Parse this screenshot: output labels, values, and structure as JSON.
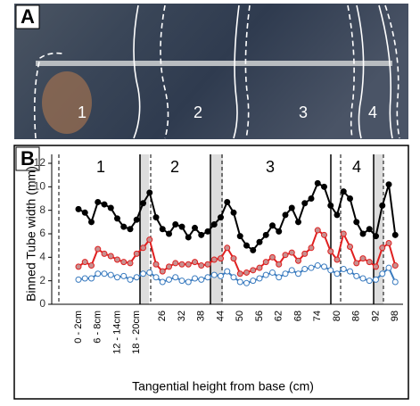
{
  "photo": {
    "label": "A",
    "zones": [
      "1",
      "2",
      "3",
      "4"
    ]
  },
  "chart_data": {
    "type": "line",
    "panel_label": "B",
    "ylabel": "Binned Tube width (mm)",
    "xlabel": "Tangential height from base (cm)",
    "zone_labels": [
      "1",
      "2",
      "3",
      "4"
    ],
    "categories": [
      "0 - 2cm",
      null,
      null,
      "6 - 8cm",
      null,
      null,
      "12 - 14cm",
      null,
      null,
      "18 - 20cm",
      null,
      null,
      null,
      "26",
      null,
      null,
      "32",
      null,
      null,
      "38",
      null,
      null,
      "44",
      null,
      null,
      "50",
      null,
      null,
      "56",
      null,
      null,
      "62",
      null,
      null,
      "68",
      null,
      null,
      "74",
      null,
      null,
      "80",
      null,
      null,
      "86",
      null,
      null,
      "92",
      null,
      null,
      "98"
    ],
    "ylim": [
      0,
      12
    ],
    "yticks": [
      0,
      2,
      4,
      6,
      8,
      10,
      12
    ],
    "series": [
      {
        "color": "#000000",
        "marker_fill": "#000000",
        "values": [
          8.1,
          7.8,
          7.0,
          8.7,
          8.5,
          8.2,
          7.3,
          6.6,
          6.4,
          7.2,
          8.6,
          9.5,
          7.4,
          6.4,
          6.0,
          6.8,
          6.6,
          5.7,
          6.5,
          5.9,
          6.2,
          6.8,
          7.4,
          8.7,
          7.8,
          5.8,
          5.0,
          4.6,
          5.3,
          5.9,
          6.7,
          6.2,
          7.6,
          8.2,
          7.0,
          8.6,
          9.0,
          10.3,
          10.0,
          8.4,
          7.6,
          9.6,
          9.0,
          7.0,
          6.0,
          6.4,
          5.8,
          8.4,
          10.2,
          5.9
        ]
      },
      {
        "color": "#e02020",
        "marker_fill": "#c89090",
        "values": [
          3.2,
          3.6,
          3.3,
          4.7,
          4.3,
          4.1,
          3.8,
          3.6,
          3.5,
          4.3,
          4.8,
          5.5,
          3.4,
          2.8,
          3.2,
          3.5,
          3.4,
          3.4,
          3.6,
          3.3,
          3.4,
          3.8,
          3.9,
          4.8,
          3.9,
          2.6,
          2.7,
          2.9,
          3.1,
          3.6,
          4.0,
          3.4,
          4.2,
          4.4,
          3.7,
          4.3,
          4.8,
          6.3,
          5.9,
          4.5,
          3.8,
          6.0,
          4.9,
          3.5,
          3.9,
          3.6,
          3.2,
          4.8,
          5.2,
          3.3
        ]
      },
      {
        "color": "#3a7bbf",
        "marker_fill": "#ffffff",
        "values": [
          2.1,
          2.2,
          2.2,
          2.6,
          2.6,
          2.5,
          2.3,
          2.4,
          2.1,
          2.3,
          2.6,
          2.7,
          2.3,
          1.9,
          2.1,
          2.3,
          2.0,
          1.9,
          2.2,
          2.1,
          2.3,
          2.5,
          2.4,
          2.8,
          2.3,
          1.9,
          1.8,
          2.0,
          2.2,
          2.5,
          2.7,
          2.3,
          2.6,
          2.9,
          2.6,
          3.0,
          3.1,
          3.3,
          3.2,
          2.9,
          2.6,
          3.0,
          2.8,
          2.4,
          2.2,
          2.0,
          2.1,
          2.6,
          3.1,
          1.9
        ]
      }
    ]
  }
}
